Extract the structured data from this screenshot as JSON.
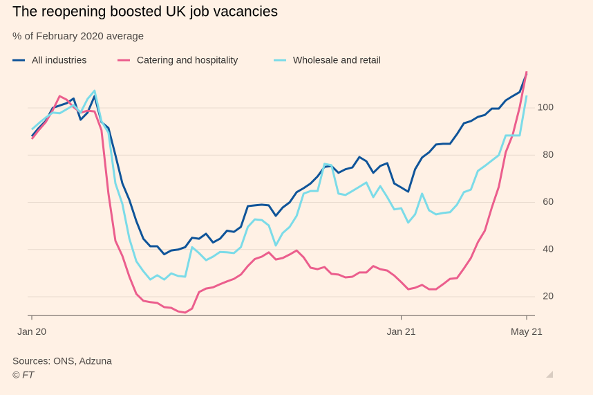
{
  "chart_data": {
    "type": "line",
    "title": "The reopening boosted UK job vacancies",
    "subtitle": "% of February 2020 average",
    "source": "Sources: ONS, Adzuna",
    "credit": "© FT",
    "categories": [
      "Jan 20",
      null,
      null,
      null,
      null,
      null,
      null,
      null,
      null,
      null,
      null,
      null,
      null,
      null,
      null,
      null,
      null,
      null,
      null,
      null,
      null,
      null,
      null,
      null,
      null,
      null,
      null,
      null,
      null,
      null,
      null,
      null,
      null,
      null,
      null,
      null,
      null,
      null,
      null,
      null,
      null,
      null,
      null,
      null,
      null,
      null,
      null,
      null,
      null,
      null,
      null,
      null,
      null,
      "Jan 21",
      null,
      null,
      null,
      null,
      null,
      null,
      null,
      null,
      null,
      null,
      null,
      null,
      null,
      null,
      null,
      null,
      null,
      "May 21"
    ],
    "series": [
      {
        "name": "All industries",
        "color": "#0f5499",
        "values": [
          88,
          91.5,
          94.5,
          100,
          101,
          102,
          104,
          95,
          98,
          105,
          94,
          91.5,
          80,
          68,
          61,
          52,
          44.6,
          41.4,
          41.4,
          38,
          39.6,
          40,
          41,
          45,
          44.6,
          46.7,
          43,
          44.6,
          48,
          47.5,
          49.6,
          58.4,
          58.7,
          59,
          58.7,
          54.3,
          57.8,
          60,
          64.3,
          66,
          68,
          71,
          75,
          75.4,
          72.5,
          74,
          74.8,
          79.2,
          77.4,
          72.5,
          75.4,
          76.6,
          68,
          66.3,
          64.5,
          74,
          79,
          81.2,
          84.5,
          84.8,
          84.8,
          88.9,
          93.5,
          94.4,
          96.2,
          97,
          99.7,
          99.7,
          103.2,
          105,
          106.7,
          114.6
        ]
      },
      {
        "name": "Catering and hospitality",
        "color": "#eb5e8d",
        "values": [
          86.8,
          90.6,
          94,
          99,
          105,
          103.5,
          100.3,
          98,
          98.8,
          98.5,
          90.6,
          63.7,
          43.7,
          37.3,
          28.5,
          21.2,
          18.3,
          17.7,
          17.4,
          15.6,
          15.3,
          13.8,
          13.3,
          15,
          22,
          23.5,
          24,
          25.3,
          26.5,
          27.6,
          29.4,
          33,
          36,
          37,
          38.8,
          35.8,
          36.4,
          37.9,
          39.6,
          36.7,
          32.3,
          31.7,
          32.6,
          29.7,
          29.4,
          28.2,
          28.5,
          30.3,
          30.3,
          33,
          31.7,
          31.1,
          29,
          26.2,
          23.2,
          23.8,
          25,
          23.2,
          23.2,
          25.3,
          27.6,
          27.9,
          32,
          36.4,
          43.1,
          48,
          57.8,
          66.6,
          81.2,
          88.6,
          100.3,
          115.5
        ]
      },
      {
        "name": "Wholesale and retail",
        "color": "#7bdbe8",
        "values": [
          90.9,
          93.5,
          95.9,
          98,
          97.7,
          99.4,
          101.2,
          98,
          103.8,
          107.3,
          94.4,
          89.5,
          68,
          59.3,
          44.6,
          35,
          30.8,
          27.3,
          29.1,
          27.3,
          29.9,
          28.8,
          28.5,
          41,
          38.5,
          35.5,
          37,
          39,
          38.8,
          38.5,
          41,
          49.6,
          52.8,
          52.5,
          50.2,
          41.7,
          47,
          49.6,
          54.3,
          63.7,
          64.8,
          64.8,
          76.3,
          75.7,
          63.7,
          63.1,
          64.8,
          66.6,
          68.4,
          62.2,
          66.9,
          62.2,
          57,
          57.5,
          51.4,
          54.9,
          63.7,
          56.6,
          54.9,
          55.5,
          55.8,
          59,
          64.3,
          65.4,
          73.3,
          75.4,
          77.7,
          80,
          88.3,
          88.3,
          88.3,
          105.3
        ]
      }
    ],
    "ylim": [
      12,
      116
    ],
    "yticks": [
      20,
      40,
      60,
      80,
      100
    ],
    "grid": true,
    "legend": "top"
  }
}
